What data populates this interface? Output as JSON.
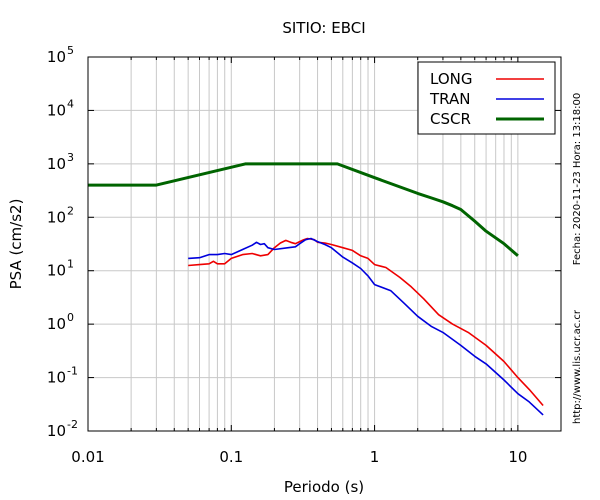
{
  "chart_data": {
    "type": "line",
    "title": "SITIO: EBCI",
    "xlabel": "Periodo (s)",
    "ylabel": "PSA (cm/s2)",
    "x_scale": "log",
    "y_scale": "log",
    "xlim": [
      0.01,
      20
    ],
    "ylim": [
      0.01,
      100000
    ],
    "grid": true,
    "legend_position": "top-right",
    "x_ticks": [
      "0.01",
      "0.1",
      "1",
      "10"
    ],
    "y_ticks": [
      {
        "base": "10",
        "exp": "-2",
        "value": 0.01
      },
      {
        "base": "10",
        "exp": "-1",
        "value": 0.1
      },
      {
        "base": "10",
        "exp": "0",
        "value": 1
      },
      {
        "base": "10",
        "exp": "1",
        "value": 10
      },
      {
        "base": "10",
        "exp": "2",
        "value": 100
      },
      {
        "base": "10",
        "exp": "3",
        "value": 1000
      },
      {
        "base": "10",
        "exp": "4",
        "value": 10000
      },
      {
        "base": "10",
        "exp": "5",
        "value": 100000
      }
    ],
    "side_text": [
      "Fecha: 2020-11-23 Hora: 13:18:00",
      "http://www.lis.ucr.ac.cr"
    ],
    "series": [
      {
        "name": "LONG",
        "color": "#ee0000",
        "points": [
          [
            0.05,
            12.5
          ],
          [
            0.06,
            13
          ],
          [
            0.07,
            13.5
          ],
          [
            0.075,
            15
          ],
          [
            0.08,
            13.5
          ],
          [
            0.09,
            13.5
          ],
          [
            0.1,
            17
          ],
          [
            0.12,
            20
          ],
          [
            0.14,
            21
          ],
          [
            0.16,
            19
          ],
          [
            0.18,
            20
          ],
          [
            0.2,
            27
          ],
          [
            0.22,
            33
          ],
          [
            0.24,
            37
          ],
          [
            0.26,
            34
          ],
          [
            0.28,
            32
          ],
          [
            0.3,
            35
          ],
          [
            0.32,
            38
          ],
          [
            0.34,
            40
          ],
          [
            0.38,
            38
          ],
          [
            0.4,
            34
          ],
          [
            0.45,
            33
          ],
          [
            0.5,
            31
          ],
          [
            0.6,
            27
          ],
          [
            0.7,
            24
          ],
          [
            0.8,
            19
          ],
          [
            0.9,
            17
          ],
          [
            1.0,
            13
          ],
          [
            1.2,
            11.5
          ],
          [
            1.5,
            7.5
          ],
          [
            1.8,
            5
          ],
          [
            2.2,
            3
          ],
          [
            2.8,
            1.5
          ],
          [
            3.5,
            1.0
          ],
          [
            4.5,
            0.7
          ],
          [
            6,
            0.4
          ],
          [
            8,
            0.2
          ],
          [
            10,
            0.1
          ],
          [
            12,
            0.06
          ],
          [
            15,
            0.03
          ]
        ]
      },
      {
        "name": "TRAN",
        "color": "#0000dd",
        "points": [
          [
            0.05,
            17
          ],
          [
            0.06,
            17.5
          ],
          [
            0.07,
            20
          ],
          [
            0.08,
            20
          ],
          [
            0.09,
            21
          ],
          [
            0.1,
            20
          ],
          [
            0.12,
            25
          ],
          [
            0.14,
            30
          ],
          [
            0.15,
            34
          ],
          [
            0.16,
            31
          ],
          [
            0.17,
            32
          ],
          [
            0.18,
            27
          ],
          [
            0.2,
            25
          ],
          [
            0.25,
            27
          ],
          [
            0.28,
            28
          ],
          [
            0.3,
            32
          ],
          [
            0.33,
            38
          ],
          [
            0.36,
            40
          ],
          [
            0.4,
            35
          ],
          [
            0.45,
            31
          ],
          [
            0.5,
            27
          ],
          [
            0.6,
            18
          ],
          [
            0.7,
            14
          ],
          [
            0.8,
            11
          ],
          [
            0.9,
            8
          ],
          [
            1.0,
            5.5
          ],
          [
            1.3,
            4.2
          ],
          [
            1.6,
            2.5
          ],
          [
            2.0,
            1.4
          ],
          [
            2.5,
            0.9
          ],
          [
            3.0,
            0.7
          ],
          [
            4.0,
            0.4
          ],
          [
            5,
            0.25
          ],
          [
            6,
            0.18
          ],
          [
            8,
            0.09
          ],
          [
            10,
            0.05
          ],
          [
            12,
            0.035
          ],
          [
            15,
            0.02
          ]
        ]
      },
      {
        "name": "CSCR",
        "color": "#006400",
        "points": [
          [
            0.01,
            400
          ],
          [
            0.03,
            400
          ],
          [
            0.125,
            1000
          ],
          [
            0.55,
            1000
          ],
          [
            1.0,
            550
          ],
          [
            1.5,
            370
          ],
          [
            2.0,
            280
          ],
          [
            2.5,
            230
          ],
          [
            3.0,
            195
          ],
          [
            3.5,
            165
          ],
          [
            4.0,
            140
          ],
          [
            5,
            85
          ],
          [
            6,
            55
          ],
          [
            8,
            32
          ],
          [
            10,
            19
          ]
        ]
      }
    ]
  }
}
